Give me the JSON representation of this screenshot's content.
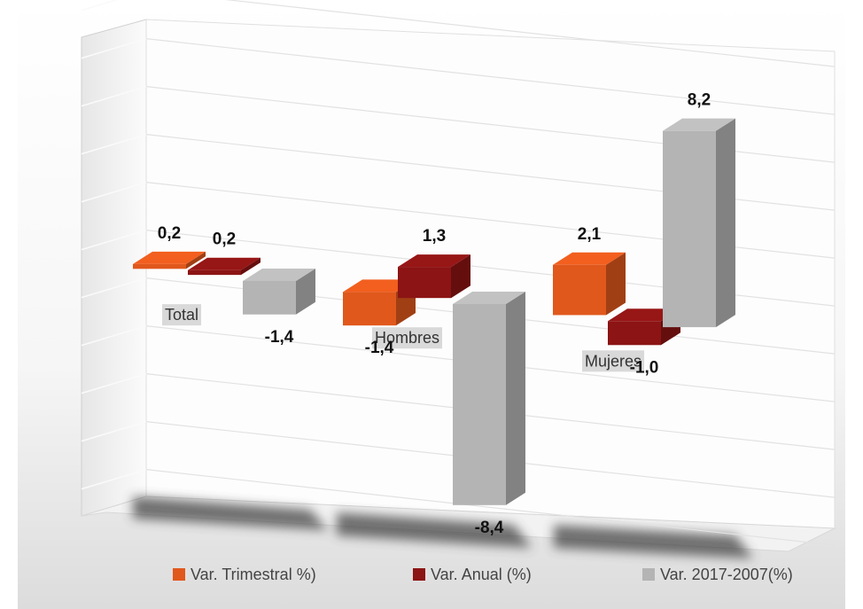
{
  "chart_data": {
    "type": "bar3d",
    "categories": [
      "Total",
      "Hombres",
      "Mujeres"
    ],
    "series": [
      {
        "name": "Var. Trimestral %)",
        "color": "#e0581c",
        "values": [
          0.2,
          -1.4,
          2.1
        ],
        "value_labels": [
          "0,2",
          "-1,4",
          "2,1"
        ]
      },
      {
        "name": "Var. Anual (%)",
        "color": "#8c1414",
        "values": [
          0.2,
          1.3,
          -1.0
        ],
        "value_labels": [
          "0,2",
          "1,3",
          "-1,0"
        ]
      },
      {
        "name": "Var. 2017-2007(%)",
        "color": "#b4b4b4",
        "values": [
          -1.4,
          -8.4,
          8.2
        ],
        "value_labels": [
          "-1,4",
          "-8,4",
          "8,2"
        ]
      }
    ],
    "ylim": [
      -10,
      10
    ],
    "yticks": [
      -10,
      -8,
      -6,
      -4,
      -2,
      0,
      2,
      4,
      6,
      8,
      10
    ],
    "grid": true
  }
}
